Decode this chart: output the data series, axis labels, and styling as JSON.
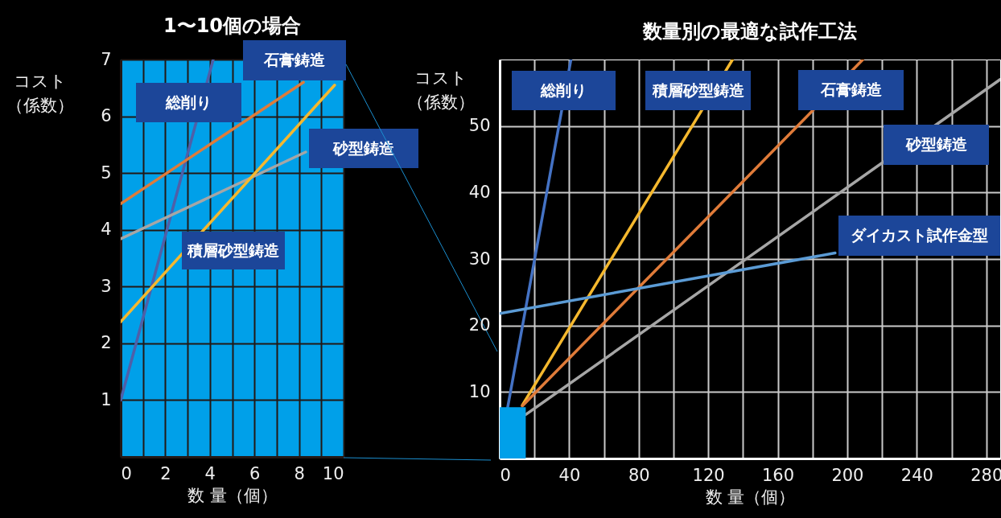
{
  "chart_data": [
    {
      "type": "line",
      "title": "1〜10個の場合",
      "xlabel": "数 量（個）",
      "ylabel": "コスト（係数）",
      "xlim": [
        0,
        10
      ],
      "xticks": [
        0,
        {
          "value": 1,
          "label": null
        },
        2,
        {
          "value": 3,
          "label": null
        },
        4,
        {
          "value": 5,
          "label": null
        },
        6,
        {
          "value": 7,
          "label": null
        },
        8,
        {
          "value": 9,
          "label": null
        },
        10
      ],
      "ylim": [
        0,
        7
      ],
      "yticks": [
        1,
        2,
        3,
        4,
        5,
        6,
        7
      ],
      "grid": true,
      "series": [
        {
          "name": "総削り",
          "color": "#4f5fa8",
          "x": [
            0,
            4.15
          ],
          "values": [
            1,
            7
          ]
        },
        {
          "name": "石膏鋳造",
          "color": "#e07b39",
          "x": [
            0,
            8.2
          ],
          "values": [
            4.46,
            6.6
          ]
        },
        {
          "name": "砂型鋳造",
          "color": "#a6a6a6",
          "x": [
            0,
            8.3
          ],
          "values": [
            3.84,
            5.37
          ]
        },
        {
          "name": "積層砂型鋳造",
          "color": "#f5b82e",
          "x": [
            0,
            9.6
          ],
          "values": [
            2.38,
            6.55
          ]
        }
      ]
    },
    {
      "type": "line",
      "title": "数量別の最適な試作工法",
      "xlabel": "数 量（個）",
      "ylabel": "コスト（係数）",
      "xlim": [
        0,
        288
      ],
      "xticks": [
        0,
        {
          "value": 20,
          "label": null
        },
        40,
        {
          "value": 60,
          "label": null
        },
        80,
        {
          "value": 100,
          "label": null
        },
        120,
        {
          "value": 140,
          "label": null
        },
        160,
        {
          "value": 180,
          "label": null
        },
        200,
        {
          "value": 220,
          "label": null
        },
        240,
        {
          "value": 260,
          "label": null
        },
        280
      ],
      "ylim": [
        0,
        60
      ],
      "yticks": [
        10,
        20,
        30,
        40,
        50
      ],
      "grid": true,
      "series": [
        {
          "name": "総削り",
          "color": "#4472c4",
          "x": [
            4.6,
            41
          ],
          "values": [
            7.7,
            60
          ]
        },
        {
          "name": "積層砂型鋳造",
          "color": "#f5b82e",
          "x": [
            13,
            134
          ],
          "values": [
            8,
            60
          ]
        },
        {
          "name": "石膏鋳造",
          "color": "#e07b39",
          "x": [
            13,
            209
          ],
          "values": [
            7.9,
            60
          ]
        },
        {
          "name": "砂型鋳造",
          "color": "#a6a6a6",
          "x": [
            15,
            288
          ],
          "values": [
            6.6,
            57
          ]
        },
        {
          "name": "ダイカスト試作金型",
          "color": "#5b9bd5",
          "x": [
            0,
            193
          ],
          "values": [
            21.8,
            30.9
          ]
        },
        {
          "type": "area",
          "color": "#00a0e9",
          "x": [
            0,
            15
          ],
          "values": [
            7.7,
            7.7
          ]
        }
      ]
    }
  ]
}
